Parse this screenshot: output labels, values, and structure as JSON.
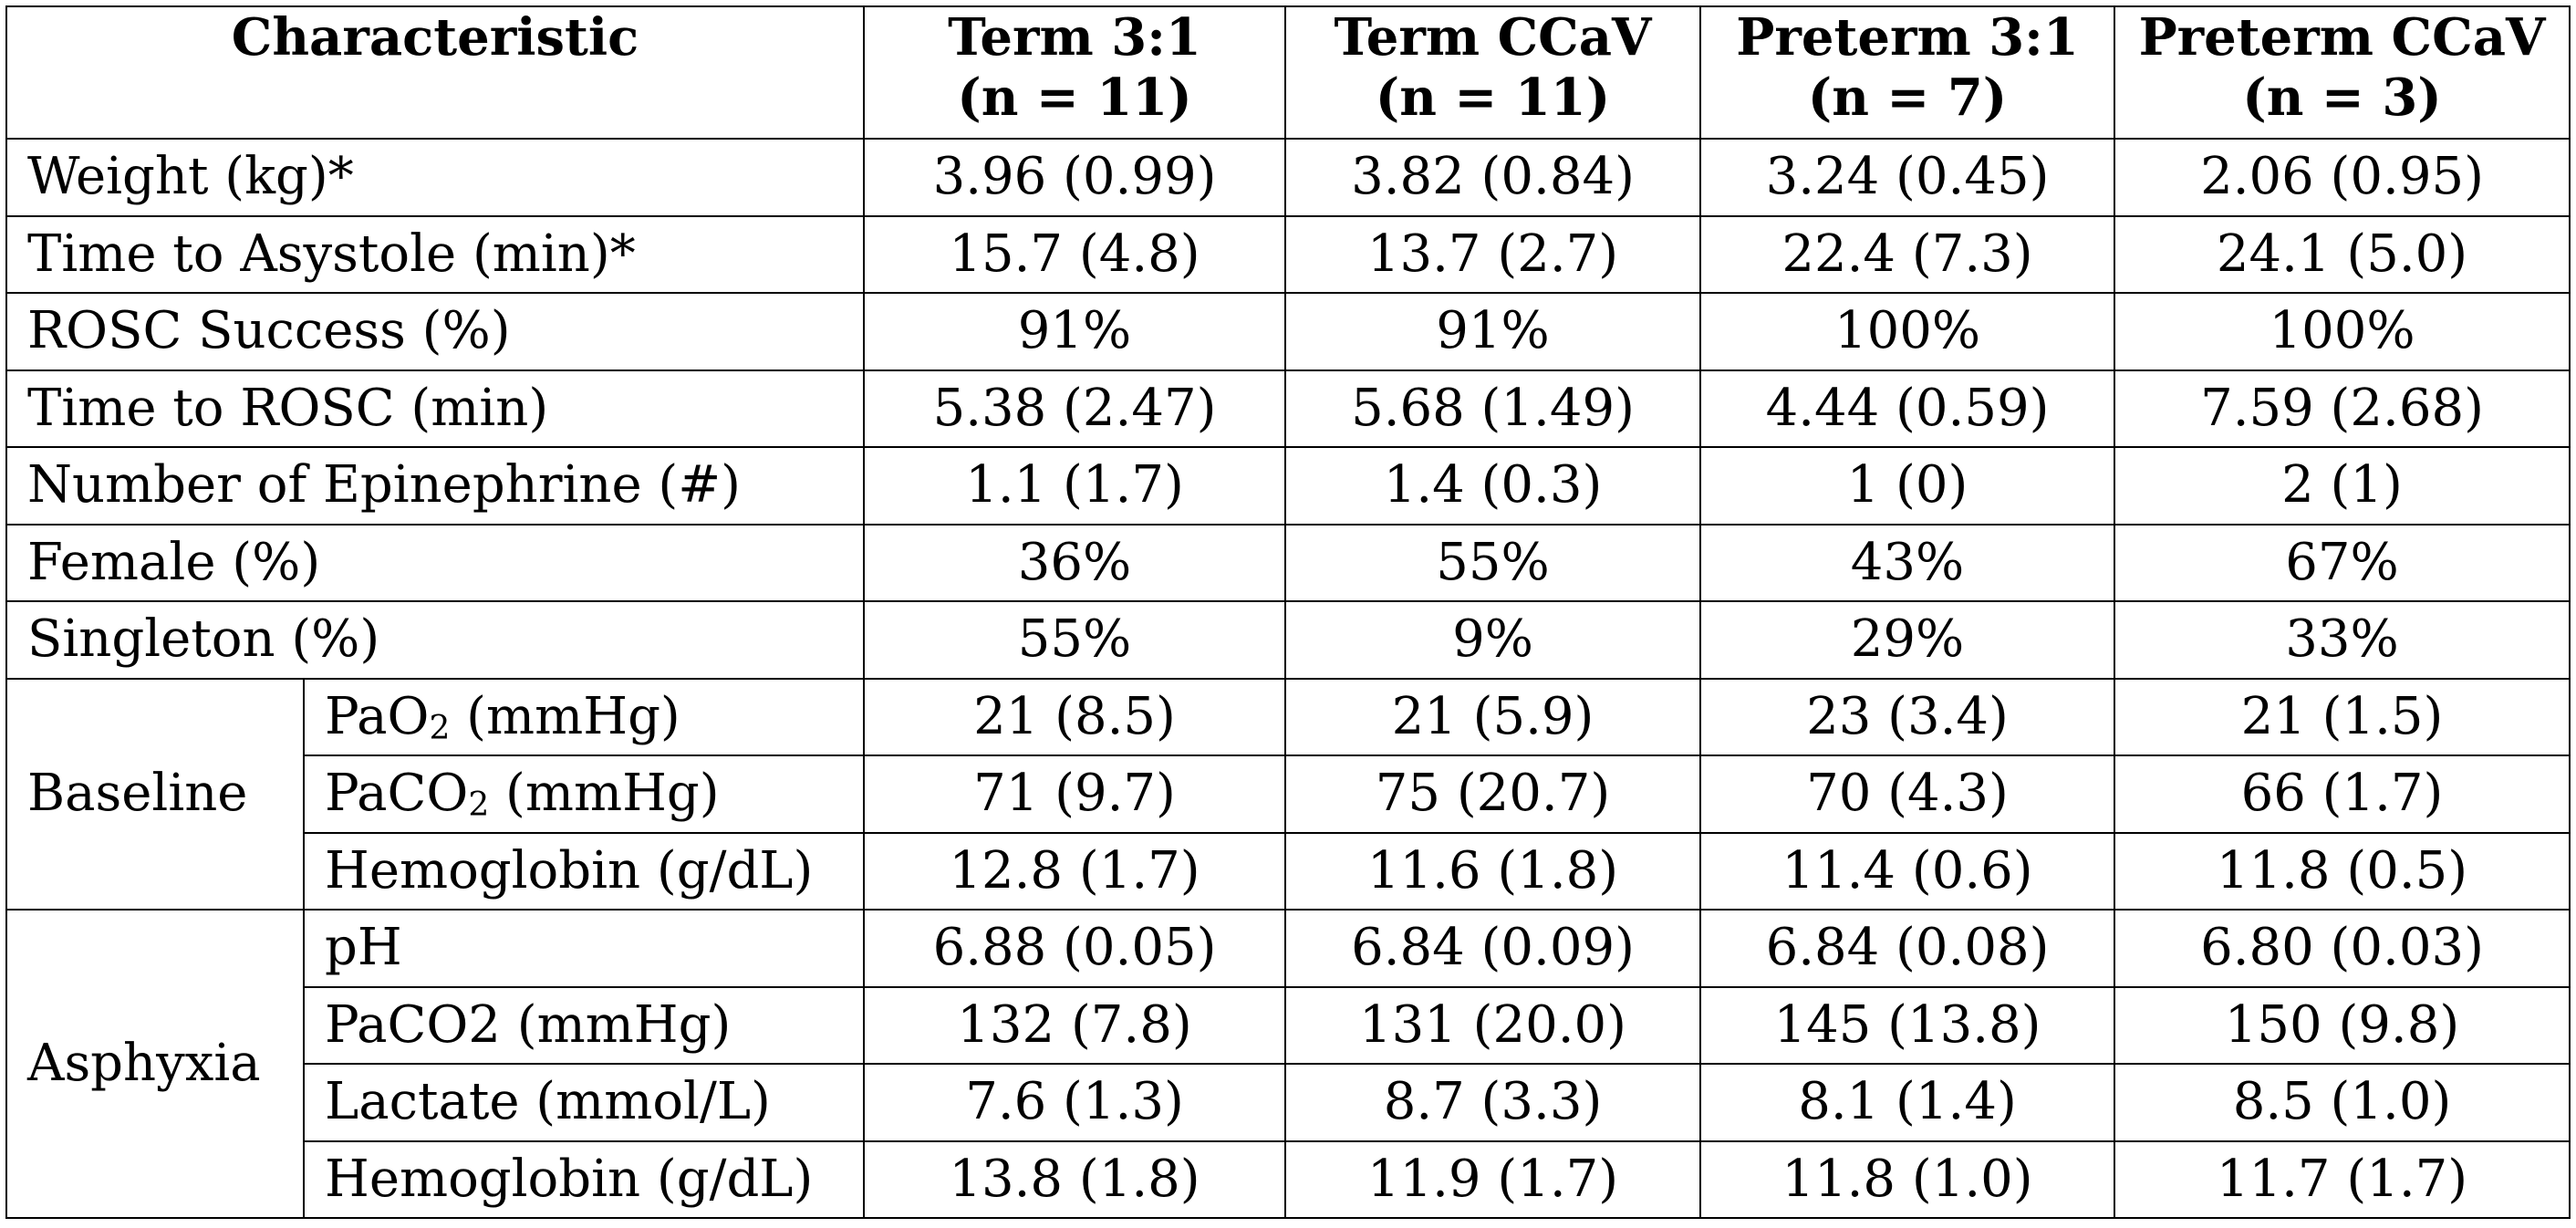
{
  "table": {
    "header": {
      "characteristic": "Characteristic",
      "groups": [
        {
          "name": "Term 3:1",
          "n": "(n = 11)"
        },
        {
          "name": "Term CCaV",
          "n": "(n = 11)"
        },
        {
          "name": "Preterm 3:1",
          "n": "(n = 7)"
        },
        {
          "name": "Preterm CCaV",
          "n": "(n = 3)"
        }
      ]
    },
    "rows": [
      {
        "label": "Weight (kg)*",
        "values": [
          "3.96 (0.99)",
          "3.82 (0.84)",
          "3.24 (0.45)",
          "2.06 (0.95)"
        ]
      },
      {
        "label": "Time to Asystole (min)*",
        "values": [
          "15.7 (4.8)",
          "13.7 (2.7)",
          "22.4 (7.3)",
          "24.1 (5.0)"
        ]
      },
      {
        "label": "ROSC Success (%)",
        "values": [
          "91%",
          "91%",
          "100%",
          "100%"
        ]
      },
      {
        "label": "Time to ROSC (min)",
        "values": [
          "5.38 (2.47)",
          "5.68 (1.49)",
          "4.44 (0.59)",
          "7.59 (2.68)"
        ]
      },
      {
        "label": "Number of Epinephrine (#)",
        "values": [
          "1.1 (1.7)",
          "1.4 (0.3)",
          "1 (0)",
          "2 (1)"
        ]
      },
      {
        "label": "Female (%)",
        "values": [
          "36%",
          "55%",
          "43%",
          "67%"
        ]
      },
      {
        "label": "Singleton (%)",
        "values": [
          "55%",
          "9%",
          "29%",
          "33%"
        ]
      }
    ],
    "groups": [
      {
        "label": "Baseline",
        "rows": [
          {
            "label_pre": "PaO",
            "label_sub": "2",
            "label_post": " (mmHg)",
            "values": [
              "21 (8.5)",
              "21 (5.9)",
              "23 (3.4)",
              "21 (1.5)"
            ]
          },
          {
            "label_pre": "PaCO",
            "label_sub": "2",
            "label_post": " (mmHg)",
            "values": [
              "71 (9.7)",
              "75 (20.7)",
              "70 (4.3)",
              "66 (1.7)"
            ]
          },
          {
            "label_pre": "Hemoglobin (g/dL)",
            "values": [
              "12.8 (1.7)",
              "11.6 (1.8)",
              "11.4 (0.6)",
              "11.8 (0.5)"
            ]
          }
        ]
      },
      {
        "label": "Asphyxia",
        "rows": [
          {
            "label_pre": "pH",
            "values": [
              "6.88 (0.05)",
              "6.84 (0.09)",
              "6.84 (0.08)",
              "6.80 (0.03)"
            ]
          },
          {
            "label_pre": "PaCO2 (mmHg)",
            "values": [
              "132 (7.8)",
              "131 (20.0)",
              "145 (13.8)",
              "150 (9.8)"
            ]
          },
          {
            "label_pre": "Lactate (mmol/L)",
            "values": [
              "7.6 (1.3)",
              "8.7 (3.3)",
              "8.1 (1.4)",
              "8.5 (1.0)"
            ]
          },
          {
            "label_pre": "Hemoglobin (g/dL)",
            "values": [
              "13.8 (1.8)",
              "11.9 (1.7)",
              "11.8 (1.0)",
              "11.7 (1.7)"
            ]
          }
        ]
      }
    ]
  }
}
